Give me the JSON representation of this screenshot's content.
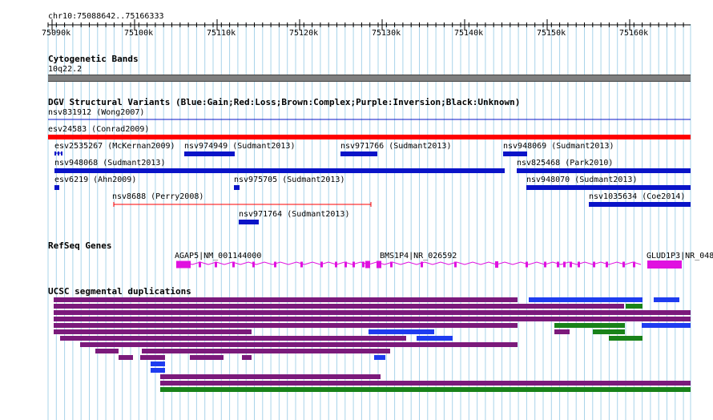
{
  "locus": "chr10:75088642..75166333",
  "ruler": {
    "ticks": [
      "75090k",
      "75100k",
      "75110k",
      "75120k",
      "75130k",
      "75140k",
      "75150k",
      "75160k"
    ]
  },
  "tracks": {
    "cyto": {
      "title": "Cytogenetic Bands",
      "band": "10q22.2"
    },
    "dgv": {
      "title": "DGV Structural Variants (Blue:Gain;Red:Loss;Brown:Complex;Purple:Inversion;Black:Unknown)"
    },
    "refseq": {
      "title": "RefSeq Genes"
    },
    "segdup": {
      "title": "UCSC segmental duplications"
    }
  },
  "dgv_features": [
    {
      "label": "nsv831912 (Wong2007)",
      "type": "line",
      "color": "#0a14c8"
    },
    {
      "label": "esv24583 (Conrad2009)",
      "type": "Loss",
      "color": "#ff0000"
    },
    {
      "label": "esv2535267 (McKernan2009)",
      "type": "Gain",
      "color": "#0a14c8"
    },
    {
      "label": "nsv974949 (Sudmant2013)",
      "type": "Gain",
      "color": "#0a14c8"
    },
    {
      "label": "nsv971766 (Sudmant2013)",
      "type": "Gain",
      "color": "#0a14c8"
    },
    {
      "label": "nsv948069 (Sudmant2013)",
      "type": "Gain",
      "color": "#0a14c8"
    },
    {
      "label": "nsv948068 (Sudmant2013)",
      "type": "Gain",
      "color": "#0a14c8"
    },
    {
      "label": "nsv825468 (Park2010)",
      "type": "Gain",
      "color": "#0a14c8"
    },
    {
      "label": "esv6219 (Ahn2009)",
      "type": "Gain",
      "color": "#0a14c8"
    },
    {
      "label": "nsv975705 (Sudmant2013)",
      "type": "Gain",
      "color": "#0a14c8"
    },
    {
      "label": "nsv948070 (Sudmant2013)",
      "type": "Gain",
      "color": "#0a14c8"
    },
    {
      "label": "nsv8688 (Perry2008)",
      "type": "Loss",
      "color": "#ff0000"
    },
    {
      "label": "nsv1035634 (Coe2014)",
      "type": "Gain",
      "color": "#0a14c8"
    },
    {
      "label": "nsv971764 (Sudmant2013)",
      "type": "Gain",
      "color": "#0a14c8"
    }
  ],
  "genes": [
    {
      "label": "AGAP5|NM_001144000"
    },
    {
      "label": "BMS1P4|NR_026592"
    },
    {
      "label": "GLUD1P3|NR_048"
    }
  ],
  "colors": {
    "grid": "#a9d4ea",
    "cyto_band": "#7f7f7f",
    "gain": "#0a14c8",
    "loss": "#ff0000",
    "gene": "#e011e0",
    "segdup_purple": "#7b1a7b",
    "segdup_blue": "#1e3cf0",
    "segdup_green": "#198219"
  }
}
